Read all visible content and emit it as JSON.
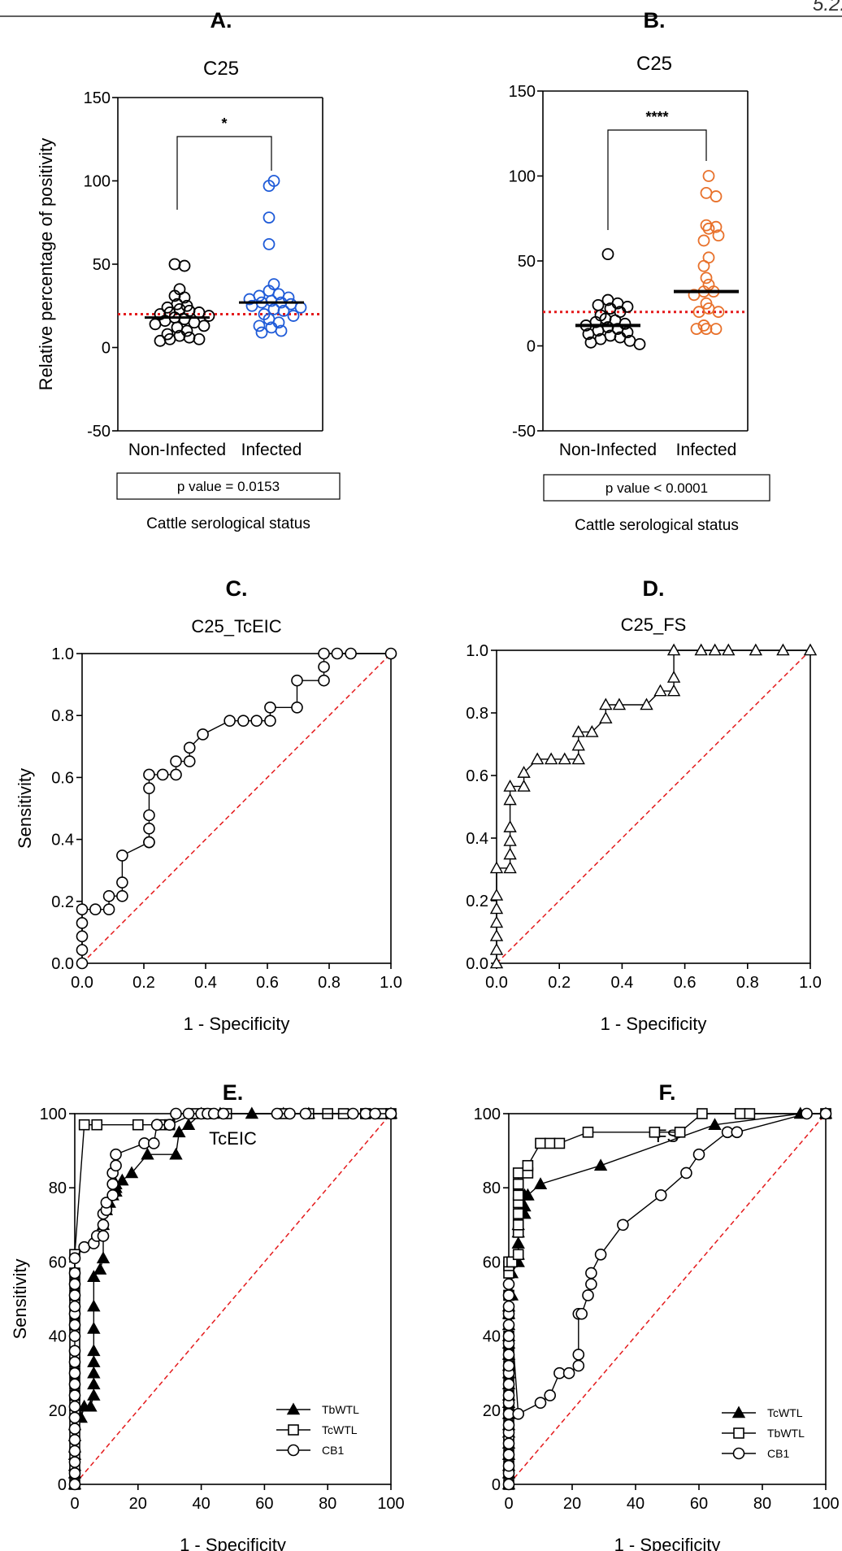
{
  "page_number_fragment": "5.2.",
  "colors": {
    "black": "#000000",
    "blue": "#1f5bd8",
    "orange": "#e8712b",
    "red": "#e41a1c",
    "pbox": "#8b1a1a"
  },
  "chart_data": [
    {
      "panel": "A.",
      "type": "scatter",
      "title": "C25",
      "ylabel": "Relative percentage of positivity",
      "xlabel": "Cattle serological status",
      "categories": [
        "Non-Infected",
        "Infected"
      ],
      "ylim": [
        -50,
        150
      ],
      "yticks": [
        -50,
        0,
        50,
        100,
        150
      ],
      "cutoff": 20,
      "significance": "*",
      "pvalue": "p value = 0.0153",
      "series": [
        {
          "category": "Non-Infected",
          "color": "black",
          "median": 18,
          "values": [
            50,
            49,
            35,
            31,
            30,
            26,
            25,
            24,
            23,
            22,
            21,
            21,
            20,
            19,
            18,
            17,
            16,
            15,
            14,
            13,
            12,
            10,
            8,
            7,
            6,
            5,
            5,
            4
          ]
        },
        {
          "category": "Infected",
          "color": "blue",
          "median": 27,
          "values": [
            100,
            97,
            78,
            62,
            38,
            34,
            32,
            31,
            30,
            29,
            28,
            27,
            27,
            26,
            25,
            24,
            23,
            22,
            20,
            19,
            17,
            15,
            13,
            12,
            10,
            9
          ]
        }
      ]
    },
    {
      "panel": "B.",
      "type": "scatter",
      "title": "C25",
      "xlabel": "Cattle serological status",
      "categories": [
        "Non-Infected",
        "Infected"
      ],
      "ylim": [
        -50,
        150
      ],
      "yticks": [
        -50,
        0,
        50,
        100,
        150
      ],
      "cutoff": 20,
      "significance": "****",
      "pvalue": "p value < 0.0001",
      "series": [
        {
          "category": "Non-Infected",
          "color": "black",
          "median": 12,
          "values": [
            54,
            27,
            25,
            24,
            23,
            22,
            20,
            18,
            16,
            15,
            14,
            13,
            12,
            11,
            10,
            9,
            8,
            7,
            6,
            5,
            4,
            3,
            2,
            1
          ]
        },
        {
          "category": "Infected",
          "color": "orange",
          "median": 32,
          "values": [
            100,
            90,
            88,
            71,
            70,
            69,
            65,
            62,
            52,
            47,
            40,
            36,
            32,
            32,
            30,
            25,
            22,
            20,
            20,
            12,
            10,
            10,
            10
          ]
        }
      ]
    },
    {
      "panel": "C.",
      "type": "line",
      "title": "C25_TcEIC",
      "xlabel": "1 - Specificity",
      "ylabel": "Sensitivity",
      "xlim": [
        0,
        1
      ],
      "ylim": [
        0,
        1
      ],
      "ticks": [
        "0.0",
        "0.2",
        "0.4",
        "0.6",
        "0.8",
        "1.0"
      ],
      "series": [
        {
          "marker": "circle",
          "x": [
            0,
            0,
            0,
            0,
            0,
            0.043,
            0.087,
            0.087,
            0.13,
            0.13,
            0.13,
            0.217,
            0.217,
            0.217,
            0.217,
            0.217,
            0.217,
            0.261,
            0.304,
            0.304,
            0.348,
            0.348,
            0.391,
            0.478,
            0.522,
            0.565,
            0.609,
            0.609,
            0.696,
            0.696,
            0.783,
            0.783,
            0.783,
            0.826,
            0.87,
            1.0
          ],
          "y": [
            0,
            0.043,
            0.087,
            0.13,
            0.174,
            0.174,
            0.174,
            0.217,
            0.217,
            0.261,
            0.348,
            0.391,
            0.391,
            0.435,
            0.478,
            0.565,
            0.609,
            0.609,
            0.609,
            0.652,
            0.652,
            0.696,
            0.739,
            0.783,
            0.783,
            0.783,
            0.783,
            0.826,
            0.826,
            0.913,
            0.913,
            0.957,
            1.0,
            1.0,
            1.0,
            1.0
          ]
        }
      ]
    },
    {
      "panel": "D.",
      "type": "line",
      "title": "C25_FS",
      "xlabel": "1 - Specificity",
      "xlim": [
        0,
        1
      ],
      "ylim": [
        0,
        1
      ],
      "ticks": [
        "0.0",
        "0.2",
        "0.4",
        "0.6",
        "0.8",
        "1.0"
      ],
      "series": [
        {
          "marker": "triangle",
          "x": [
            0,
            0,
            0,
            0,
            0,
            0,
            0,
            0.043,
            0.043,
            0.043,
            0.043,
            0.043,
            0.043,
            0.087,
            0.087,
            0.13,
            0.174,
            0.217,
            0.261,
            0.261,
            0.261,
            0.304,
            0.348,
            0.348,
            0.391,
            0.478,
            0.522,
            0.565,
            0.565,
            0.565,
            0.652,
            0.696,
            0.739,
            0.826,
            0.913,
            1.0
          ],
          "y": [
            0,
            0.043,
            0.087,
            0.13,
            0.174,
            0.217,
            0.304,
            0.304,
            0.348,
            0.391,
            0.435,
            0.522,
            0.565,
            0.565,
            0.609,
            0.652,
            0.652,
            0.652,
            0.652,
            0.696,
            0.739,
            0.739,
            0.783,
            0.826,
            0.826,
            0.826,
            0.87,
            0.87,
            0.913,
            1.0,
            1.0,
            1.0,
            1.0,
            1.0,
            1.0,
            1.0
          ]
        }
      ]
    },
    {
      "panel": "E.",
      "type": "line",
      "title": "TcEIC",
      "xlabel": "1 - Specificity",
      "ylabel": "Sensitivity",
      "xlim": [
        0,
        100
      ],
      "ylim": [
        0,
        100
      ],
      "ticks": [
        "0",
        "20",
        "40",
        "60",
        "80",
        "100"
      ],
      "legend": "bottom-right",
      "series": [
        {
          "name": "TbWTL",
          "marker": "filled-triangle",
          "x": [
            0,
            0,
            0,
            0,
            0,
            0,
            0,
            2,
            3,
            5,
            6,
            6,
            6,
            6,
            6,
            6,
            6,
            6,
            8,
            9,
            9,
            10,
            11,
            12,
            13,
            13,
            13,
            15,
            18,
            23,
            32,
            33,
            36,
            40,
            46,
            56,
            66,
            74,
            100
          ],
          "y": [
            0,
            3,
            5,
            8,
            10,
            13,
            16,
            18,
            21,
            21,
            24,
            27,
            30,
            33,
            36,
            42,
            48,
            56,
            58,
            61,
            70,
            74,
            76,
            78,
            79,
            80,
            81,
            82,
            84,
            89,
            89,
            95,
            97,
            100,
            100,
            100,
            100,
            100,
            100
          ]
        },
        {
          "name": "TcWTL",
          "marker": "square",
          "x": [
            0,
            0,
            0,
            0,
            0,
            0,
            0,
            0,
            0,
            0,
            0,
            0,
            0,
            0,
            0,
            0,
            0,
            0,
            0,
            0,
            0,
            0,
            0,
            3,
            7,
            20,
            28,
            30,
            38,
            42,
            48,
            66,
            74,
            80,
            85,
            92,
            97,
            100
          ],
          "y": [
            0,
            3,
            5,
            8,
            11,
            14,
            16,
            19,
            22,
            24,
            27,
            30,
            33,
            35,
            38,
            41,
            43,
            46,
            49,
            51,
            54,
            57,
            62,
            97,
            97,
            97,
            97,
            97,
            100,
            100,
            100,
            100,
            100,
            100,
            100,
            100,
            100,
            100
          ]
        },
        {
          "name": "CB1",
          "marker": "circle",
          "x": [
            0,
            0,
            0,
            0,
            0,
            0,
            0,
            0,
            0,
            0,
            0,
            0,
            0,
            0,
            0,
            0,
            0,
            0,
            0,
            0,
            0,
            3,
            6,
            7,
            9,
            9,
            9,
            10,
            10,
            12,
            12,
            12,
            13,
            13,
            22,
            25,
            26,
            30,
            32,
            36,
            40,
            42,
            44,
            47,
            64,
            68,
            73,
            88,
            92,
            95,
            100
          ],
          "y": [
            0,
            3,
            6,
            9,
            12,
            15,
            18,
            21,
            24,
            27,
            30,
            33,
            36,
            40,
            43,
            46,
            48,
            51,
            54,
            57,
            61,
            64,
            65,
            67,
            67,
            70,
            73,
            74,
            76,
            78,
            81,
            84,
            86,
            89,
            92,
            92,
            97,
            97,
            100,
            100,
            100,
            100,
            100,
            100,
            100,
            100,
            100,
            100,
            100,
            100,
            100
          ]
        }
      ]
    },
    {
      "panel": "F.",
      "type": "line",
      "title": "FS",
      "xlabel": "1 - Specificity",
      "xlim": [
        0,
        100
      ],
      "ylim": [
        0,
        100
      ],
      "ticks": [
        "0",
        "20",
        "40",
        "60",
        "80",
        "100"
      ],
      "legend": "bottom-right",
      "series": [
        {
          "name": "TcWTL",
          "marker": "filled-triangle",
          "x": [
            0,
            0,
            0,
            0,
            0,
            0,
            0,
            0,
            0,
            0,
            0,
            0,
            0,
            0,
            0,
            0,
            0,
            0,
            0,
            1,
            1,
            3,
            3,
            3,
            3,
            3,
            5,
            5,
            5,
            6,
            6,
            10,
            29,
            65,
            92,
            100
          ],
          "y": [
            0,
            3,
            5,
            8,
            11,
            14,
            16,
            19,
            22,
            24,
            27,
            30,
            32,
            35,
            38,
            40,
            43,
            46,
            48,
            51,
            57,
            60,
            62,
            65,
            68,
            70,
            73,
            75,
            78,
            78,
            78,
            81,
            86,
            97,
            100,
            100
          ]
        },
        {
          "name": "TbWTL",
          "marker": "square",
          "x": [
            0,
            0,
            0,
            0,
            0,
            0,
            0,
            0,
            0,
            0,
            0,
            0,
            0,
            0,
            0,
            0,
            0,
            0,
            0,
            0,
            0,
            1,
            3,
            3,
            3,
            3,
            3,
            3,
            3,
            3,
            6,
            6,
            10,
            13,
            16,
            25,
            46,
            54,
            61,
            73,
            76,
            100
          ],
          "y": [
            0,
            3,
            5,
            8,
            11,
            13,
            16,
            19,
            22,
            24,
            27,
            30,
            32,
            35,
            38,
            40,
            46,
            51,
            57,
            59,
            60,
            60,
            62,
            68,
            70,
            73,
            76,
            78,
            81,
            84,
            84,
            86,
            92,
            92,
            92,
            95,
            95,
            95,
            100,
            100,
            100,
            100
          ]
        },
        {
          "name": "CB1",
          "marker": "circle",
          "x": [
            0,
            0,
            0,
            0,
            0,
            0,
            0,
            0,
            0,
            0,
            0,
            0,
            0,
            0,
            0,
            0,
            0,
            0,
            0,
            0,
            0,
            3,
            10,
            13,
            16,
            19,
            22,
            22,
            22,
            23,
            25,
            26,
            26,
            29,
            36,
            48,
            56,
            60,
            69,
            72,
            94,
            100
          ],
          "y": [
            0,
            3,
            5,
            8,
            11,
            14,
            16,
            19,
            22,
            24,
            27,
            30,
            32,
            35,
            38,
            40,
            43,
            46,
            48,
            51,
            54,
            19,
            22,
            24,
            30,
            30,
            32,
            35,
            46,
            46,
            51,
            54,
            57,
            62,
            70,
            78,
            84,
            89,
            95,
            95,
            100,
            100
          ]
        }
      ]
    }
  ]
}
